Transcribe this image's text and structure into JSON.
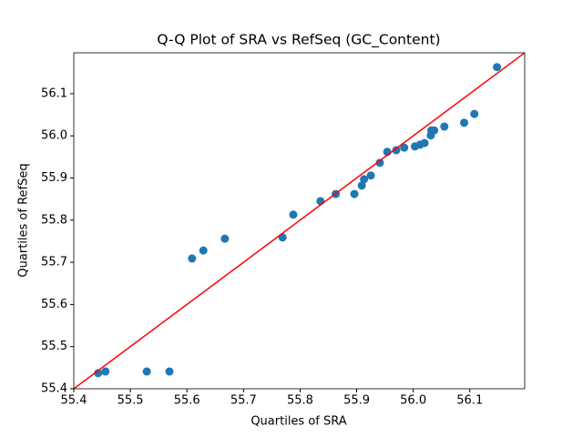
{
  "chart_data": {
    "type": "scatter",
    "title": "Q-Q Plot of SRA vs RefSeq (GC_Content)",
    "x_label": "Quartiles of SRA",
    "y_label": "Quartiles of RefSeq",
    "x": [
      55.443,
      55.456,
      55.529,
      55.569,
      55.609,
      55.629,
      55.667,
      55.769,
      55.788,
      55.836,
      55.863,
      55.896,
      55.909,
      55.913,
      55.925,
      55.941,
      55.954,
      55.97,
      55.984,
      56.003,
      56.012,
      56.02,
      56.031,
      56.032,
      56.037,
      56.055,
      56.09,
      56.108,
      56.148
    ],
    "values": [
      55.437,
      55.441,
      55.441,
      55.441,
      55.709,
      55.728,
      55.756,
      55.759,
      55.813,
      55.845,
      55.862,
      55.862,
      55.882,
      55.897,
      55.906,
      55.936,
      55.962,
      55.966,
      55.972,
      55.975,
      55.979,
      55.983,
      56.001,
      56.013,
      56.013,
      56.022,
      56.031,
      56.052,
      56.163
    ],
    "color": "#1f77b4",
    "reference_line": {
      "x": [
        55.4,
        56.197
      ],
      "y": [
        55.4,
        56.197
      ],
      "color": "#ff0000"
    },
    "xlim": [
      55.4,
      56.197
    ],
    "ylim": [
      55.4,
      56.197
    ],
    "xticks": [
      55.4,
      55.5,
      55.6,
      55.7,
      55.8,
      55.9,
      {
        "value": 56,
        "label": "56.0"
      },
      56.1
    ],
    "yticks": [
      55.4,
      55.5,
      55.6,
      55.7,
      55.8,
      55.9,
      {
        "value": 56,
        "label": "56.0"
      },
      56.1
    ],
    "grid": false
  }
}
